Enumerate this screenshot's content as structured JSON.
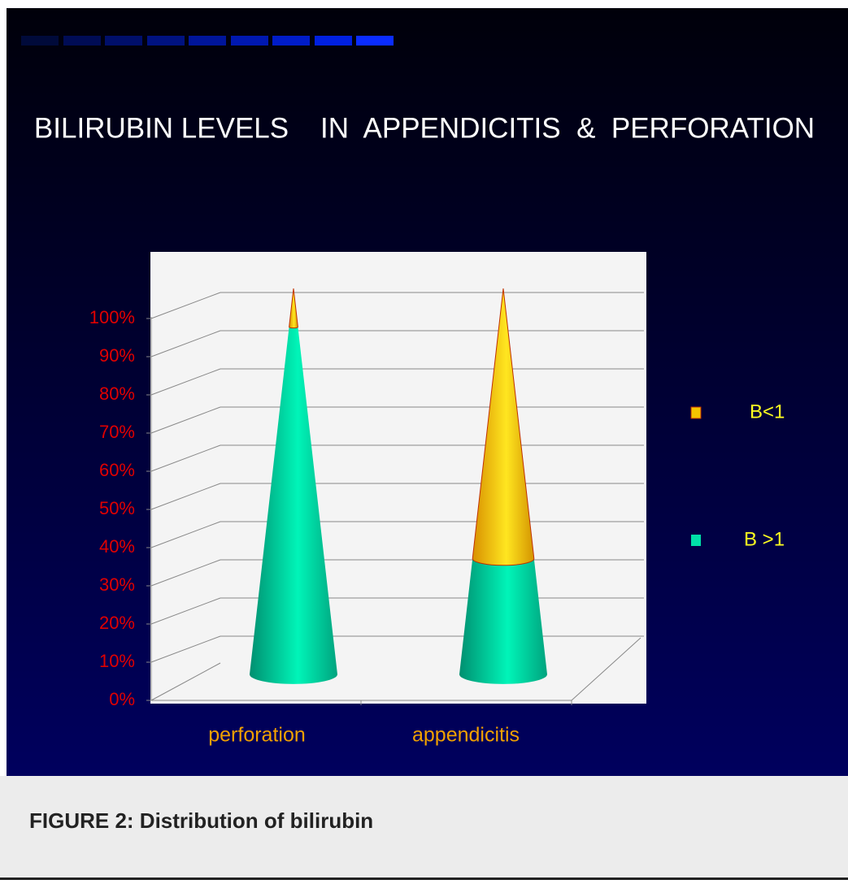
{
  "chart_data": {
    "type": "cone-stacked-percent",
    "title": "BILIRUBIN LEVELS    IN  APPENDICITIS  &  PERFORATION",
    "categories": [
      "perforation",
      "appendicitis"
    ],
    "series": [
      {
        "name": "B >1",
        "color": "#00e0a8",
        "values": [
          90,
          30
        ]
      },
      {
        "name": "B<1",
        "color": "#f5c400",
        "values": [
          10,
          70
        ]
      }
    ],
    "ylim": [
      0,
      100
    ],
    "yticks": [
      {
        "value": 0,
        "label": "0%"
      },
      {
        "value": 10,
        "label": "10%"
      },
      {
        "value": 20,
        "label": "20%"
      },
      {
        "value": 30,
        "label": "30%"
      },
      {
        "value": 40,
        "label": "40%"
      },
      {
        "value": 50,
        "label": "50%"
      },
      {
        "value": 60,
        "label": "60%"
      },
      {
        "value": 70,
        "label": "70%"
      },
      {
        "value": 80,
        "label": "80%"
      },
      {
        "value": 90,
        "label": "90%"
      },
      {
        "value": 100,
        "label": "100%"
      }
    ],
    "grid": true
  },
  "caption": "FIGURE 2: Distribution of bilirubin"
}
